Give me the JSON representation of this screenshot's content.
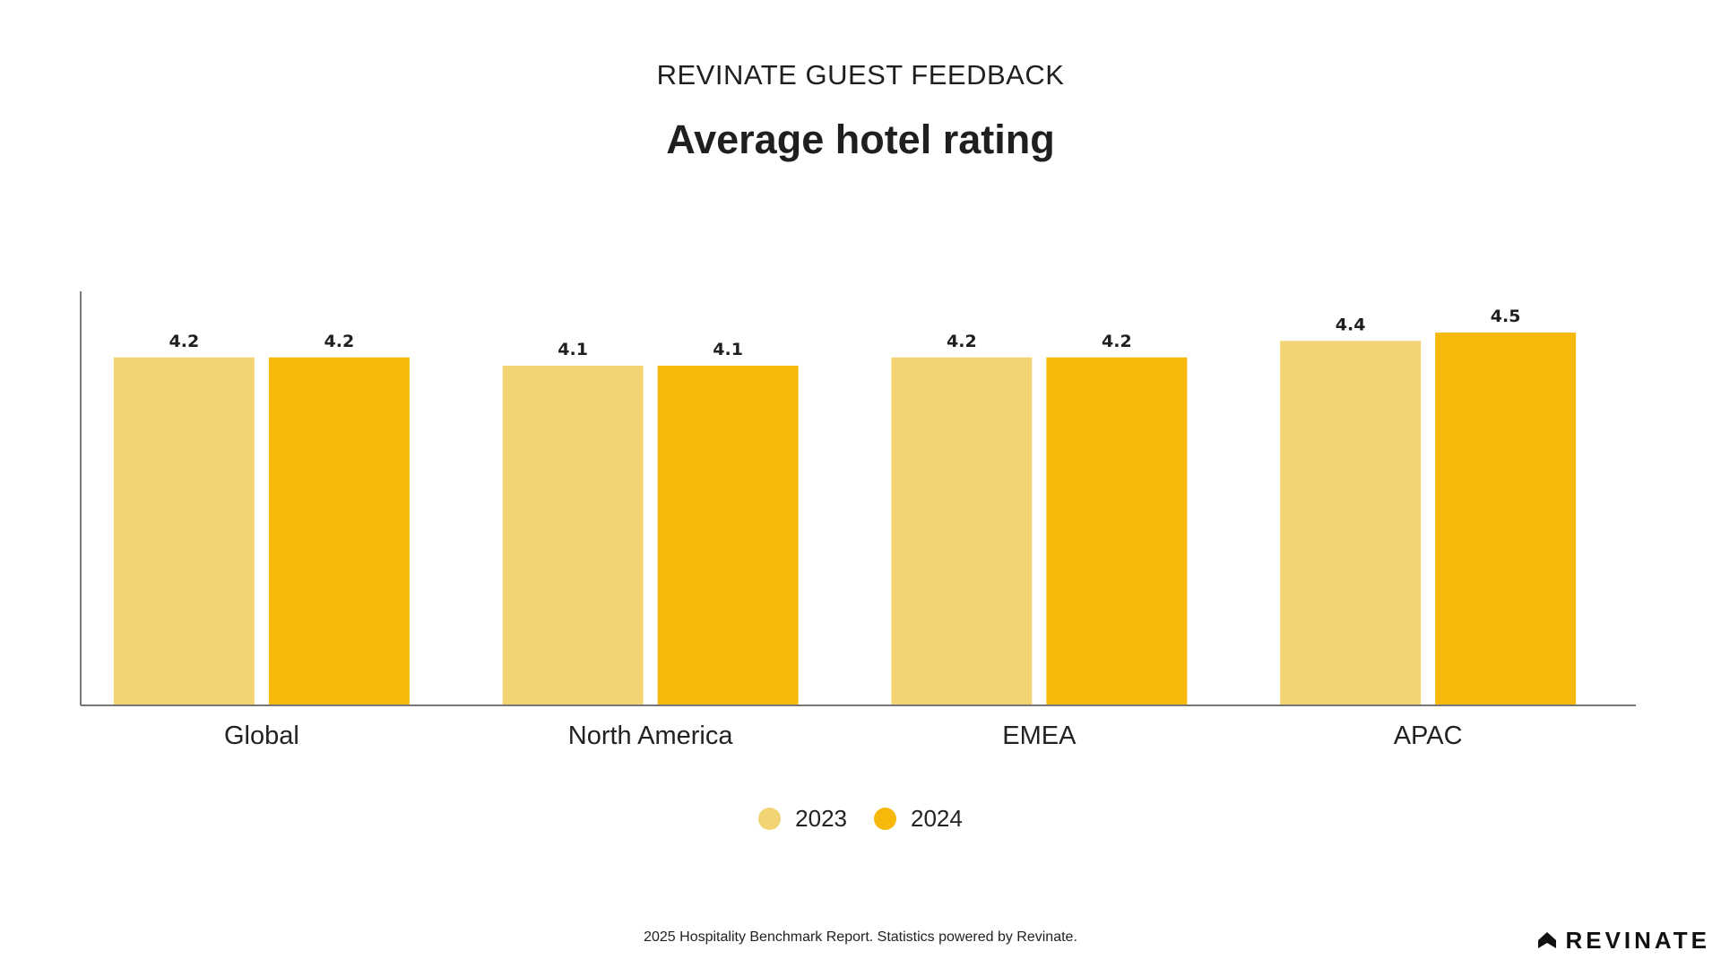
{
  "header": {
    "eyebrow": "REVINATE GUEST FEEDBACK",
    "title": "Average hotel rating"
  },
  "footer": {
    "note": "2025 Hospitality Benchmark Report. Statistics powered by Revinate.",
    "brand": "REVINATE"
  },
  "legend": [
    {
      "label": "2023",
      "color": "#F2D475"
    },
    {
      "label": "2024",
      "color": "#F6B80A"
    }
  ],
  "chart_data": {
    "type": "bar",
    "title": "Average hotel rating",
    "xlabel": "",
    "ylabel": "",
    "categories": [
      "Global",
      "North America",
      "EMEA",
      "APAC"
    ],
    "series": [
      {
        "name": "2023",
        "values": [
          4.2,
          4.1,
          4.2,
          4.4
        ],
        "color": "#F2D475"
      },
      {
        "name": "2024",
        "values": [
          4.2,
          4.1,
          4.2,
          4.5
        ],
        "color": "#F6B80A"
      }
    ],
    "ylim": [
      0,
      5
    ],
    "grid": false,
    "legend": "bottom"
  }
}
